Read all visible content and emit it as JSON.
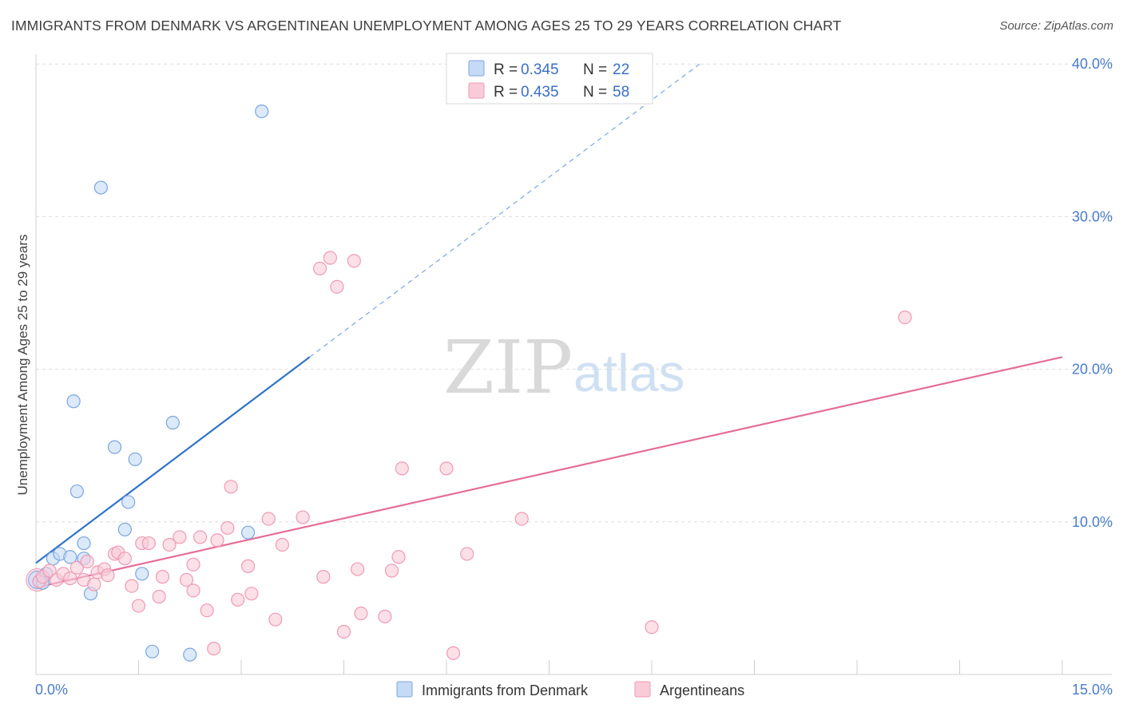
{
  "title": "IMMIGRANTS FROM DENMARK VS ARGENTINEAN UNEMPLOYMENT AMONG AGES 25 TO 29 YEARS CORRELATION CHART",
  "source": "Source: ZipAtlas.com",
  "watermark": {
    "zip": "ZIP",
    "atlas": "atlas"
  },
  "legend": {
    "r_label": "R =",
    "n_label": "N =",
    "rows": [
      {
        "series": "Immigrants from Denmark",
        "r": "0.345",
        "n": "22"
      },
      {
        "series": "Argentineans",
        "r": "0.435",
        "n": "58"
      }
    ]
  },
  "colors": {
    "blue_fill": "#c5daf5",
    "blue_stroke": "#7aa6de",
    "blue_line": "#2f73c8",
    "pink_fill": "#f9cbd9",
    "pink_stroke": "#ee9ab5",
    "pink_line": "#e56d98",
    "grid": "#dddddd",
    "axis_label": "#4a7cc9"
  },
  "chart_data": {
    "type": "scatter",
    "title": "IMMIGRANTS FROM DENMARK VS ARGENTINEAN UNEMPLOYMENT AMONG AGES 25 TO 29 YEARS CORRELATION CHART",
    "xlabel": "",
    "ylabel": "Unemployment Among Ages 25 to 29 years",
    "xlim": [
      0,
      15
    ],
    "ylim": [
      0,
      40
    ],
    "x_tick_labels": [
      {
        "value": 0,
        "label": "0.0%"
      },
      {
        "value": 15,
        "label": "15.0%"
      }
    ],
    "y_tick_labels": [
      {
        "value": 10,
        "label": "10.0%"
      },
      {
        "value": 20,
        "label": "20.0%"
      },
      {
        "value": 30,
        "label": "30.0%"
      },
      {
        "value": 40,
        "label": "40.0%"
      }
    ],
    "series": [
      {
        "name": "Immigrants from Denmark",
        "color": "blue",
        "points": [
          [
            0.05,
            6.1
          ],
          [
            0.15,
            6.6
          ],
          [
            0.25,
            7.6
          ],
          [
            0.35,
            7.9
          ],
          [
            0.5,
            7.7
          ],
          [
            0.55,
            17.9
          ],
          [
            0.6,
            12.0
          ],
          [
            0.7,
            7.6
          ],
          [
            0.7,
            8.6
          ],
          [
            0.8,
            5.3
          ],
          [
            0.95,
            31.9
          ],
          [
            1.15,
            14.9
          ],
          [
            1.3,
            9.5
          ],
          [
            1.35,
            11.3
          ],
          [
            1.45,
            14.1
          ],
          [
            1.55,
            6.6
          ],
          [
            1.7,
            1.5
          ],
          [
            2.0,
            16.5
          ],
          [
            2.25,
            1.3
          ],
          [
            3.1,
            9.3
          ],
          [
            3.3,
            36.9
          ],
          [
            0.1,
            6.0
          ]
        ],
        "fit": {
          "x0": 0,
          "y0": 7.3,
          "x1": 4.0,
          "y1": 20.8,
          "dash_x1": 9.7,
          "dash_y1": 40.0
        }
      },
      {
        "name": "Argentineans",
        "color": "pink",
        "points": [
          [
            0.05,
            6.1
          ],
          [
            0.1,
            6.4
          ],
          [
            0.2,
            6.8
          ],
          [
            0.3,
            6.2
          ],
          [
            0.4,
            6.6
          ],
          [
            0.5,
            6.3
          ],
          [
            0.6,
            7.0
          ],
          [
            0.7,
            6.2
          ],
          [
            0.75,
            7.4
          ],
          [
            0.85,
            5.9
          ],
          [
            0.9,
            6.7
          ],
          [
            1.0,
            6.9
          ],
          [
            1.05,
            6.5
          ],
          [
            1.15,
            7.9
          ],
          [
            1.2,
            8.0
          ],
          [
            1.3,
            7.6
          ],
          [
            1.4,
            5.8
          ],
          [
            1.5,
            4.5
          ],
          [
            1.55,
            8.6
          ],
          [
            1.65,
            8.6
          ],
          [
            1.8,
            5.1
          ],
          [
            1.85,
            6.4
          ],
          [
            1.95,
            8.5
          ],
          [
            2.1,
            9.0
          ],
          [
            2.2,
            6.2
          ],
          [
            2.3,
            5.5
          ],
          [
            2.3,
            7.2
          ],
          [
            2.4,
            9.0
          ],
          [
            2.5,
            4.2
          ],
          [
            2.6,
            1.7
          ],
          [
            2.65,
            8.8
          ],
          [
            2.8,
            9.6
          ],
          [
            2.85,
            12.3
          ],
          [
            2.95,
            4.9
          ],
          [
            3.1,
            7.1
          ],
          [
            3.15,
            5.3
          ],
          [
            3.4,
            10.2
          ],
          [
            3.5,
            3.6
          ],
          [
            3.6,
            8.5
          ],
          [
            3.9,
            10.3
          ],
          [
            4.15,
            26.6
          ],
          [
            4.2,
            6.4
          ],
          [
            4.3,
            27.3
          ],
          [
            4.4,
            25.4
          ],
          [
            4.5,
            2.8
          ],
          [
            4.65,
            27.1
          ],
          [
            4.7,
            6.9
          ],
          [
            4.75,
            4.0
          ],
          [
            5.1,
            3.8
          ],
          [
            5.2,
            6.8
          ],
          [
            5.3,
            7.7
          ],
          [
            5.35,
            13.5
          ],
          [
            6.0,
            13.5
          ],
          [
            6.1,
            1.4
          ],
          [
            6.3,
            7.9
          ],
          [
            7.1,
            10.2
          ],
          [
            9.0,
            3.1
          ],
          [
            12.7,
            23.4
          ]
        ],
        "fit": {
          "x0": 0,
          "y0": 5.7,
          "x1": 15.0,
          "y1": 20.8
        }
      }
    ]
  }
}
